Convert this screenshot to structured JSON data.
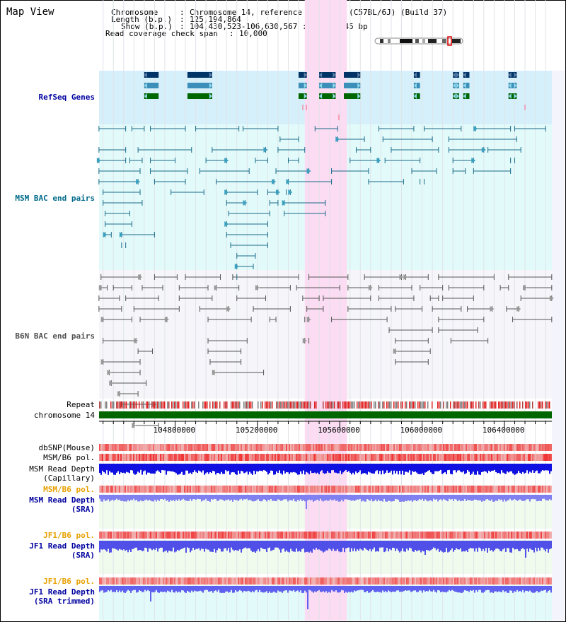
{
  "app": {
    "title": "Map View"
  },
  "header": {
    "chromosome_key": "Chromosome",
    "chromosome_value": "Chromosome 14, reference assembly (C57BL/6J) (Build 37)",
    "length_key": "Length (b.p.)",
    "length_value": "125,194,864",
    "show_key": "Show (b.p.)",
    "show_value": "104,430,523-106,630,567 : 2,200,045 bp",
    "coverage_key": "Read coverage check span",
    "coverage_value": "10,000"
  },
  "view": {
    "start": 104430523,
    "end": 106630567,
    "highlight_start": 105430000,
    "highlight_end": 105635000
  },
  "axis": {
    "ticks": [
      104800000,
      105200000,
      105600000,
      106000000,
      106400000
    ],
    "labels": [
      "104800000",
      "105200000",
      "105600000",
      "106000000",
      "106400000"
    ]
  },
  "tracks": {
    "refseq": {
      "label": "RefSeq Genes",
      "colors": [
        "#003366",
        "#3b8fb8",
        "#006600"
      ]
    },
    "msm_bac": {
      "label": "MSM BAC end pairs",
      "color": "#1a6a8a"
    },
    "b6n_bac": {
      "label": "B6N BAC end pairs",
      "color": "#555555"
    },
    "repeat": {
      "label": "Repeat"
    },
    "chrom": {
      "label": "chromosome 14",
      "color": "#006600"
    },
    "dbsnp": {
      "label": "dbSNP(Mouse)"
    },
    "msm_b6_pol": {
      "label": "MSM/B6 pol."
    },
    "msm_depth_cap": {
      "label1": "MSM Read Depth",
      "label2": "(Capillary)",
      "color": "#1010e0"
    },
    "msm_b6_pol2": {
      "label": "MSM/B6 pol."
    },
    "msm_depth_sra": {
      "label1": "MSM Read Depth",
      "label2": "(SRA)",
      "color": "#8080f0"
    },
    "jf1_pol": {
      "label": "JF1/B6 pol."
    },
    "jf1_depth_sra": {
      "label1": "JF1 Read Depth",
      "label2": "(SRA)",
      "color": "#5050e8"
    },
    "jf1_pol2": {
      "label": "JF1/B6 pol."
    },
    "jf1_depth_trim": {
      "label1": "JF1 Read Depth",
      "label2": "(SRA trimmed)",
      "color": "#6060f0"
    }
  },
  "genes": [
    {
      "start": 104650000,
      "end": 104720000,
      "dir": "left"
    },
    {
      "start": 104860000,
      "end": 104980000,
      "dir": "right"
    },
    {
      "start": 105400000,
      "end": 105440000,
      "dir": "right"
    },
    {
      "start": 105500000,
      "end": 105580000,
      "dir": "both"
    },
    {
      "start": 105620000,
      "end": 105700000,
      "dir": "right"
    },
    {
      "start": 105960000,
      "end": 105990000,
      "dir": "left"
    },
    {
      "start": 106150000,
      "end": 106180000,
      "dir": "both"
    },
    {
      "start": 106200000,
      "end": 106230000,
      "dir": "left"
    },
    {
      "start": 106420000,
      "end": 106460000,
      "dir": "both"
    }
  ],
  "msm_pairs": [
    [
      104430000,
      104560000
    ],
    [
      104590000,
      104650000
    ],
    [
      104680000,
      104850000
    ],
    [
      104900000,
      105110000
    ],
    [
      105130000,
      105300000
    ],
    [
      105310000,
      105400000
    ],
    [
      105480000,
      105590000
    ],
    [
      105590000,
      105720000
    ],
    [
      105790000,
      105960000
    ],
    [
      106010000,
      106190000
    ],
    [
      106260000,
      106430000
    ],
    [
      106450000,
      106600000
    ],
    [
      104430000,
      104560000
    ],
    [
      104620000,
      104880000
    ],
    [
      104980000,
      105240000
    ],
    [
      105300000,
      105430000
    ],
    [
      105680000,
      105750000
    ],
    [
      105810000,
      106050000
    ],
    [
      106130000,
      106460000
    ],
    [
      104430000,
      104560000
    ],
    [
      104580000,
      104640000
    ],
    [
      104680000,
      104800000
    ],
    [
      104950000,
      105050000
    ],
    [
      105190000,
      105250000
    ],
    [
      105350000,
      105400000
    ],
    [
      105650000,
      105790000
    ],
    [
      105850000,
      106080000
    ],
    [
      106130000,
      106300000
    ],
    [
      106320000,
      106480000
    ],
    [
      104430000,
      104630000
    ],
    [
      104680000,
      104860000
    ],
    [
      104920000,
      105160000
    ],
    [
      105290000,
      105450000
    ],
    [
      105560000,
      105740000
    ],
    [
      105820000,
      105990000
    ],
    [
      106150000,
      106250000
    ],
    [
      104430000,
      104620000
    ],
    [
      104700000,
      104850000
    ],
    [
      105000000,
      105280000
    ],
    [
      105350000,
      105560000
    ],
    [
      105740000,
      105910000
    ],
    [
      105950000,
      106070000
    ],
    [
      106150000,
      106210000
    ],
    [
      106250000,
      106430000
    ],
    [
      104450000,
      104630000
    ],
    [
      104780000,
      104940000
    ],
    [
      105050000,
      105200000
    ],
    [
      105250000,
      105300000
    ],
    [
      105990000,
      106010000
    ],
    [
      106430000,
      106450000
    ],
    [
      104450000,
      104640000
    ],
    [
      105050000,
      105140000
    ],
    [
      105260000,
      105300000
    ],
    [
      104460000,
      104580000
    ],
    [
      105060000,
      105260000
    ],
    [
      105340000,
      105360000
    ],
    [
      104460000,
      104590000
    ],
    [
      105050000,
      105250000
    ],
    [
      105330000,
      105530000
    ],
    [
      104460000,
      104490000
    ],
    [
      104540000,
      104700000
    ],
    [
      105050000,
      105250000
    ],
    [
      105330000,
      105530000
    ],
    [
      104540000,
      104560000
    ],
    [
      105070000,
      105250000
    ],
    [
      105100000,
      105190000
    ],
    [
      105100000,
      105180000
    ],
    [
      105080000,
      105100000
    ]
  ],
  "b6n_pairs": [
    [
      104440000,
      104630000
    ],
    [
      104700000,
      104810000
    ],
    [
      104850000,
      105020000
    ],
    [
      105080000,
      105400000
    ],
    [
      105450000,
      105640000
    ],
    [
      105720000,
      105900000
    ],
    [
      105920000,
      106030000
    ],
    [
      106080000,
      106350000
    ],
    [
      106420000,
      106630000
    ],
    [
      104440000,
      104470000
    ],
    [
      104500000,
      104590000
    ],
    [
      104640000,
      104740000
    ],
    [
      104820000,
      104960000
    ],
    [
      105000000,
      105110000
    ],
    [
      105200000,
      105360000
    ],
    [
      105390000,
      105600000
    ],
    [
      105640000,
      105750000
    ],
    [
      105790000,
      105950000
    ],
    [
      105990000,
      106100000
    ],
    [
      106130000,
      106300000
    ],
    [
      106380000,
      106420000
    ],
    [
      106500000,
      106630000
    ],
    [
      104430000,
      104530000
    ],
    [
      104560000,
      104720000
    ],
    [
      104820000,
      104980000
    ],
    [
      105100000,
      105240000
    ],
    [
      105420000,
      105500000
    ],
    [
      105520000,
      105750000
    ],
    [
      105790000,
      105960000
    ],
    [
      106040000,
      106080000
    ],
    [
      106100000,
      106250000
    ],
    [
      106480000,
      106630000
    ],
    [
      104430000,
      104540000
    ],
    [
      104600000,
      104820000
    ],
    [
      104920000,
      105060000
    ],
    [
      105180000,
      105360000
    ],
    [
      105440000,
      105520000
    ],
    [
      105640000,
      105850000
    ],
    [
      105870000,
      106000000
    ],
    [
      106050000,
      106190000
    ],
    [
      106220000,
      106340000
    ],
    [
      106410000,
      106470000
    ],
    [
      104450000,
      104590000
    ],
    [
      104630000,
      104760000
    ],
    [
      104960000,
      105170000
    ],
    [
      105260000,
      105290000
    ],
    [
      105430000,
      105450000
    ],
    [
      105560000,
      105830000
    ],
    [
      105840000,
      106050000
    ],
    [
      106080000,
      106300000
    ],
    [
      106440000,
      106630000
    ],
    [
      104450000,
      104610000
    ],
    [
      104620000,
      104690000
    ],
    [
      104960000,
      105150000
    ],
    [
      105430000,
      105450000
    ],
    [
      105870000,
      106030000
    ],
    [
      106080000,
      106270000
    ],
    [
      104450000,
      104630000
    ],
    [
      104960000,
      105120000
    ],
    [
      105870000,
      106040000
    ],
    [
      106140000,
      106320000
    ],
    [
      104480000,
      104630000
    ],
    [
      104970000,
      105120000
    ],
    [
      105870000,
      106030000
    ],
    [
      104490000,
      104660000
    ],
    [
      104990000,
      105230000
    ],
    [
      104530000,
      104620000
    ],
    [
      104540000,
      104700000
    ],
    [
      104560000,
      104670000
    ],
    [
      104600000,
      104720000
    ]
  ]
}
